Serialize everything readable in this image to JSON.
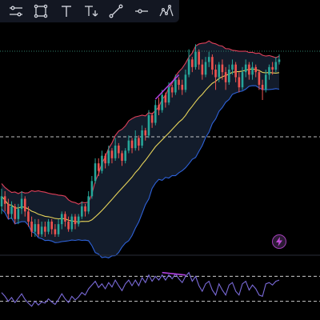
{
  "toolbar": {
    "tools": [
      {
        "name": "lines-tool-icon"
      },
      {
        "name": "rectangle-tool-icon"
      },
      {
        "name": "text-tool-icon"
      },
      {
        "name": "text-note-tool-icon"
      },
      {
        "name": "trend-line-tool-icon"
      },
      {
        "name": "horizontal-ray-tool-icon"
      },
      {
        "name": "pattern-tool-icon"
      }
    ]
  },
  "colors": {
    "background": "#000000",
    "up_candle": "#26a69a",
    "down_candle": "#ef5350",
    "bb_upper": "#e0405a",
    "bb_basis": "#e6d35a",
    "bb_lower": "#2e62d9",
    "bb_fill": "#131c2b",
    "rsi_line": "#7a6ad8",
    "trend_highlight": "#b040e0",
    "price_level_dotted": "#2f7f6a",
    "guide_dashed": "#ffffff"
  },
  "chart_data": {
    "type": "candlestick",
    "indicators": [
      "bollinger_bands",
      "rsi"
    ],
    "legend": "none",
    "grid": false,
    "candles": [
      {
        "o": 40,
        "c": 44,
        "h": 47,
        "l": 37
      },
      {
        "o": 44,
        "c": 41,
        "h": 46,
        "l": 38
      },
      {
        "o": 41,
        "c": 37,
        "h": 43,
        "l": 35
      },
      {
        "o": 37,
        "c": 40,
        "h": 42,
        "l": 35
      },
      {
        "o": 40,
        "c": 35,
        "h": 41,
        "l": 33
      },
      {
        "o": 35,
        "c": 39,
        "h": 41,
        "l": 33
      },
      {
        "o": 39,
        "c": 43,
        "h": 46,
        "l": 37
      },
      {
        "o": 43,
        "c": 38,
        "h": 44,
        "l": 36
      },
      {
        "o": 38,
        "c": 34,
        "h": 40,
        "l": 32
      },
      {
        "o": 34,
        "c": 30,
        "h": 36,
        "l": 28
      },
      {
        "o": 30,
        "c": 33,
        "h": 35,
        "l": 28
      },
      {
        "o": 33,
        "c": 29,
        "h": 35,
        "l": 28
      },
      {
        "o": 29,
        "c": 32,
        "h": 34,
        "l": 28
      },
      {
        "o": 32,
        "c": 30,
        "h": 34,
        "l": 28
      },
      {
        "o": 30,
        "c": 34,
        "h": 35,
        "l": 29
      },
      {
        "o": 34,
        "c": 31,
        "h": 35,
        "l": 29
      },
      {
        "o": 31,
        "c": 29,
        "h": 33,
        "l": 28
      },
      {
        "o": 29,
        "c": 33,
        "h": 35,
        "l": 28
      },
      {
        "o": 33,
        "c": 37,
        "h": 38,
        "l": 31
      },
      {
        "o": 37,
        "c": 34,
        "h": 38,
        "l": 32
      },
      {
        "o": 34,
        "c": 31,
        "h": 36,
        "l": 30
      },
      {
        "o": 31,
        "c": 36,
        "h": 37,
        "l": 30
      },
      {
        "o": 36,
        "c": 33,
        "h": 37,
        "l": 31
      },
      {
        "o": 33,
        "c": 36,
        "h": 37,
        "l": 32
      },
      {
        "o": 36,
        "c": 40,
        "h": 42,
        "l": 35
      },
      {
        "o": 40,
        "c": 38,
        "h": 41,
        "l": 36
      },
      {
        "o": 38,
        "c": 44,
        "h": 46,
        "l": 37
      },
      {
        "o": 44,
        "c": 50,
        "h": 52,
        "l": 43
      },
      {
        "o": 50,
        "c": 57,
        "h": 59,
        "l": 49
      },
      {
        "o": 57,
        "c": 54,
        "h": 59,
        "l": 52
      },
      {
        "o": 54,
        "c": 60,
        "h": 62,
        "l": 53
      },
      {
        "o": 60,
        "c": 57,
        "h": 61,
        "l": 55
      },
      {
        "o": 57,
        "c": 62,
        "h": 64,
        "l": 56
      },
      {
        "o": 62,
        "c": 59,
        "h": 63,
        "l": 57
      },
      {
        "o": 59,
        "c": 64,
        "h": 67,
        "l": 58
      },
      {
        "o": 64,
        "c": 61,
        "h": 65,
        "l": 59
      },
      {
        "o": 61,
        "c": 58,
        "h": 62,
        "l": 56
      },
      {
        "o": 58,
        "c": 62,
        "h": 63,
        "l": 57
      },
      {
        "o": 62,
        "c": 66,
        "h": 68,
        "l": 61
      },
      {
        "o": 66,
        "c": 63,
        "h": 67,
        "l": 61
      },
      {
        "o": 63,
        "c": 67,
        "h": 70,
        "l": 62
      },
      {
        "o": 67,
        "c": 64,
        "h": 68,
        "l": 62
      },
      {
        "o": 64,
        "c": 70,
        "h": 72,
        "l": 63
      },
      {
        "o": 70,
        "c": 68,
        "h": 71,
        "l": 66
      },
      {
        "o": 68,
        "c": 76,
        "h": 78,
        "l": 67
      },
      {
        "o": 76,
        "c": 73,
        "h": 77,
        "l": 71
      },
      {
        "o": 73,
        "c": 80,
        "h": 82,
        "l": 72
      },
      {
        "o": 80,
        "c": 78,
        "h": 83,
        "l": 76
      },
      {
        "o": 78,
        "c": 84,
        "h": 86,
        "l": 77
      },
      {
        "o": 84,
        "c": 81,
        "h": 85,
        "l": 79
      },
      {
        "o": 81,
        "c": 87,
        "h": 89,
        "l": 80
      },
      {
        "o": 87,
        "c": 85,
        "h": 88,
        "l": 83
      },
      {
        "o": 85,
        "c": 90,
        "h": 92,
        "l": 84
      },
      {
        "o": 90,
        "c": 88,
        "h": 91,
        "l": 86
      },
      {
        "o": 88,
        "c": 86,
        "h": 90,
        "l": 84
      },
      {
        "o": 86,
        "c": 92,
        "h": 94,
        "l": 85
      },
      {
        "o": 92,
        "c": 98,
        "h": 102,
        "l": 91
      },
      {
        "o": 98,
        "c": 95,
        "h": 99,
        "l": 93
      },
      {
        "o": 95,
        "c": 101,
        "h": 104,
        "l": 94
      },
      {
        "o": 101,
        "c": 96,
        "h": 102,
        "l": 94
      },
      {
        "o": 96,
        "c": 92,
        "h": 98,
        "l": 90
      },
      {
        "o": 92,
        "c": 97,
        "h": 99,
        "l": 91
      },
      {
        "o": 97,
        "c": 99,
        "h": 101,
        "l": 95
      },
      {
        "o": 99,
        "c": 94,
        "h": 100,
        "l": 92
      },
      {
        "o": 94,
        "c": 91,
        "h": 96,
        "l": 86
      },
      {
        "o": 91,
        "c": 96,
        "h": 97,
        "l": 89
      },
      {
        "o": 96,
        "c": 93,
        "h": 98,
        "l": 90
      },
      {
        "o": 93,
        "c": 89,
        "h": 95,
        "l": 86
      },
      {
        "o": 89,
        "c": 94,
        "h": 96,
        "l": 88
      },
      {
        "o": 94,
        "c": 96,
        "h": 98,
        "l": 92
      },
      {
        "o": 96,
        "c": 91,
        "h": 97,
        "l": 89
      },
      {
        "o": 91,
        "c": 87,
        "h": 93,
        "l": 85
      },
      {
        "o": 87,
        "c": 93,
        "h": 95,
        "l": 86
      },
      {
        "o": 93,
        "c": 96,
        "h": 98,
        "l": 91
      },
      {
        "o": 96,
        "c": 92,
        "h": 97,
        "l": 90
      },
      {
        "o": 92,
        "c": 95,
        "h": 97,
        "l": 90
      },
      {
        "o": 95,
        "c": 93,
        "h": 96,
        "l": 91
      },
      {
        "o": 93,
        "c": 88,
        "h": 94,
        "l": 86
      },
      {
        "o": 88,
        "c": 86,
        "h": 90,
        "l": 82
      },
      {
        "o": 86,
        "c": 92,
        "h": 94,
        "l": 85
      },
      {
        "o": 92,
        "c": 95,
        "h": 96,
        "l": 90
      },
      {
        "o": 95,
        "c": 94,
        "h": 97,
        "l": 92
      },
      {
        "o": 94,
        "c": 97,
        "h": 99,
        "l": 93
      },
      {
        "o": 97,
        "c": 98,
        "h": 100,
        "l": 96
      }
    ],
    "rsi": [
      44,
      38,
      30,
      36,
      28,
      35,
      42,
      33,
      27,
      22,
      30,
      24,
      29,
      27,
      34,
      29,
      25,
      33,
      42,
      34,
      28,
      38,
      32,
      37,
      44,
      40,
      50,
      56,
      62,
      52,
      58,
      50,
      60,
      53,
      64,
      55,
      47,
      58,
      64,
      55,
      64,
      55,
      68,
      60,
      72,
      62,
      70,
      64,
      72,
      64,
      72,
      66,
      74,
      66,
      60,
      70,
      76,
      62,
      70,
      55,
      46,
      58,
      62,
      48,
      40,
      58,
      48,
      40,
      56,
      60,
      46,
      40,
      58,
      62,
      48,
      56,
      50,
      40,
      38,
      58,
      60,
      56,
      62,
      64
    ],
    "rsi_levels": {
      "upper": 70,
      "lower": 30
    }
  }
}
